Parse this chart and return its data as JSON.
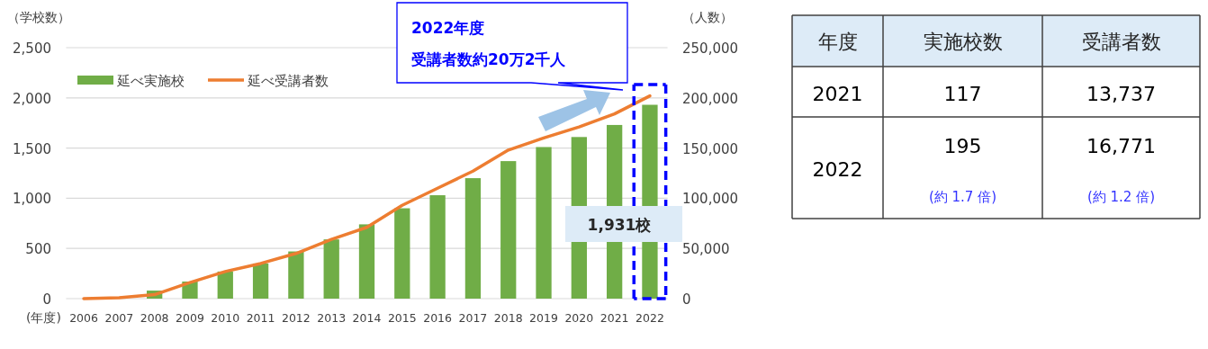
{
  "chart_data": [
    {
      "type": "bar",
      "categories": [
        "2006",
        "2007",
        "2008",
        "2009",
        "2010",
        "2011",
        "2012",
        "2013",
        "2014",
        "2015",
        "2016",
        "2017",
        "2018",
        "2019",
        "2020",
        "2021",
        "2022"
      ],
      "series": [
        {
          "name": "延べ実施校",
          "type": "bar",
          "color": "#70ad47",
          "values": [
            0,
            null,
            80,
            170,
            270,
            350,
            470,
            590,
            740,
            900,
            1030,
            1200,
            1370,
            1510,
            1610,
            1730,
            1931
          ]
        },
        {
          "name": "延べ受講者数",
          "type": "line",
          "axis": "y2",
          "color": "#ed7d31",
          "values": [
            0,
            1000,
            4000,
            16000,
            27000,
            35000,
            45000,
            59000,
            71000,
            93000,
            110000,
            127000,
            148000,
            160000,
            171000,
            184000,
            202000
          ]
        }
      ],
      "xlabel": "(年度)",
      "ylabel": "（学校数）",
      "y2label": "（人数）",
      "ylim": [
        0,
        2500
      ],
      "yticks": [
        {
          "value": 0,
          "label": "0"
        },
        {
          "value": 500,
          "label": "500"
        },
        {
          "value": 1000,
          "label": "1,000"
        },
        {
          "value": 1500,
          "label": "1,500"
        },
        {
          "value": 2000,
          "label": "2,000"
        },
        {
          "value": 2500,
          "label": "2,500"
        }
      ],
      "y2lim": [
        0,
        250000
      ],
      "y2ticks": [
        {
          "value": 0,
          "label": "0"
        },
        {
          "value": 50000,
          "label": "50,000"
        },
        {
          "value": 100000,
          "label": "100,000"
        },
        {
          "value": 150000,
          "label": "150,000"
        },
        {
          "value": 200000,
          "label": "200,000"
        },
        {
          "value": 250000,
          "label": "250,000"
        }
      ],
      "grid": "y",
      "legend": "top left",
      "annotations": [
        "2022年度",
        "受講者数約20万2千人",
        "1,931校"
      ]
    },
    {
      "type": "other",
      "categories": [
        "年度",
        "実施校数",
        "受講者数"
      ],
      "cell_labels": [
        [
          "2021",
          "117",
          "13,737"
        ],
        [
          "2022",
          "195",
          "16,771"
        ]
      ],
      "annotations": [
        "(約 1.7 倍)",
        "(約 1.2 倍)"
      ]
    }
  ]
}
